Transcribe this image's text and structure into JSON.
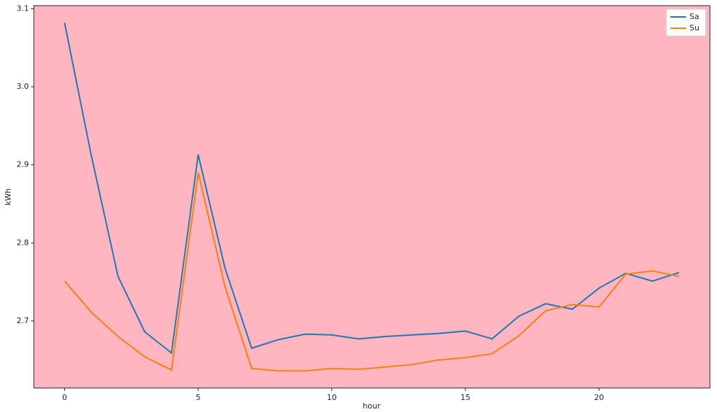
{
  "chart_data": {
    "type": "line",
    "x_label": "hour",
    "y_label": "kWh",
    "x": [
      0,
      1,
      2,
      3,
      4,
      5,
      6,
      7,
      8,
      9,
      10,
      11,
      12,
      13,
      14,
      15,
      16,
      17,
      18,
      19,
      20,
      21,
      22,
      23
    ],
    "series": [
      {
        "name": "Sa",
        "color": "#1f77b4",
        "values": [
          3.082,
          2.912,
          2.757,
          2.686,
          2.659,
          2.913,
          2.768,
          2.665,
          2.676,
          2.683,
          2.682,
          2.677,
          2.68,
          2.682,
          2.684,
          2.687,
          2.677,
          2.706,
          2.722,
          2.715,
          2.742,
          2.761,
          2.751,
          2.762
        ]
      },
      {
        "name": "Su",
        "color": "#ff7f0e",
        "values": [
          2.751,
          2.711,
          2.68,
          2.654,
          2.637,
          2.89,
          2.744,
          2.639,
          2.636,
          2.636,
          2.639,
          2.638,
          2.641,
          2.644,
          2.65,
          2.653,
          2.658,
          2.681,
          2.713,
          2.721,
          2.718,
          2.76,
          2.764,
          2.757
        ]
      }
    ],
    "xlim": [
      -1.15,
      24.15
    ],
    "ylim": [
      2.614,
      3.104
    ],
    "xticks": [
      0,
      5,
      10,
      15,
      20
    ],
    "yticks": [
      2.7,
      2.8,
      2.9,
      {
        "value": 3,
        "label": "3.0"
      },
      3.1
    ],
    "background": "#ffb6c1",
    "legend": "upper right",
    "grid": false
  }
}
